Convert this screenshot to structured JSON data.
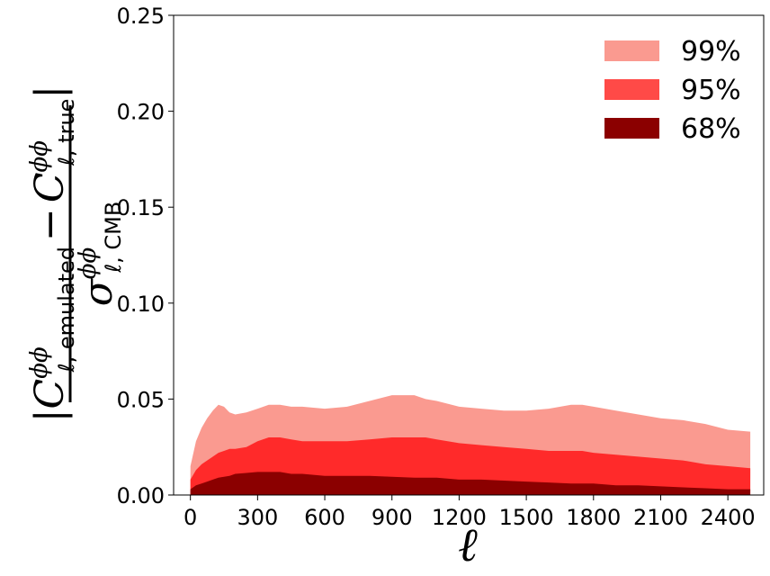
{
  "chart_data": {
    "type": "area",
    "xlabel": "ℓ",
    "ylabel": {
      "numerator_left_C": "C",
      "numerator_left_sup": "ϕϕ",
      "numerator_left_sub": "ℓ, emulated",
      "minus": "−",
      "numerator_right_C": "C",
      "numerator_right_sup": "ϕϕ",
      "numerator_right_sub": "ℓ, true",
      "denominator_sigma": "σ",
      "denominator_sup": "ϕϕ",
      "denominator_sub": "ℓ, CMB"
    },
    "xlim": [
      -75,
      2560
    ],
    "ylim": [
      0,
      0.25
    ],
    "x_ticks": [
      0,
      300,
      600,
      900,
      1200,
      1500,
      1800,
      2100,
      2400
    ],
    "y_ticks": [
      "0.00",
      "0.05",
      "0.10",
      "0.15",
      "0.20",
      "0.25"
    ],
    "grid": false,
    "legend_position": "top-right",
    "x": [
      0,
      25,
      50,
      75,
      100,
      125,
      150,
      175,
      200,
      250,
      300,
      350,
      400,
      450,
      500,
      600,
      700,
      800,
      900,
      1000,
      1050,
      1100,
      1200,
      1300,
      1400,
      1500,
      1600,
      1700,
      1750,
      1800,
      1900,
      2000,
      2100,
      2200,
      2300,
      2400,
      2500
    ],
    "series": [
      {
        "name": "99%",
        "color": "#fa9a90",
        "values": [
          0.015,
          0.028,
          0.035,
          0.04,
          0.044,
          0.047,
          0.046,
          0.043,
          0.042,
          0.043,
          0.045,
          0.047,
          0.047,
          0.046,
          0.046,
          0.045,
          0.046,
          0.049,
          0.052,
          0.052,
          0.05,
          0.049,
          0.046,
          0.045,
          0.044,
          0.044,
          0.045,
          0.047,
          0.047,
          0.046,
          0.044,
          0.042,
          0.04,
          0.039,
          0.037,
          0.034,
          0.033
        ]
      },
      {
        "name": "95%",
        "color": "#ff4a47",
        "values": [
          0.008,
          0.013,
          0.016,
          0.018,
          0.02,
          0.022,
          0.023,
          0.024,
          0.024,
          0.025,
          0.028,
          0.03,
          0.03,
          0.029,
          0.028,
          0.028,
          0.028,
          0.029,
          0.03,
          0.03,
          0.03,
          0.029,
          0.027,
          0.026,
          0.025,
          0.024,
          0.023,
          0.023,
          0.023,
          0.022,
          0.021,
          0.02,
          0.019,
          0.018,
          0.016,
          0.015,
          0.014
        ]
      },
      {
        "name": "68%",
        "color": "#8b0000",
        "values": [
          0.003,
          0.005,
          0.006,
          0.007,
          0.008,
          0.009,
          0.0095,
          0.01,
          0.011,
          0.0115,
          0.012,
          0.012,
          0.012,
          0.011,
          0.011,
          0.01,
          0.01,
          0.01,
          0.0095,
          0.009,
          0.009,
          0.009,
          0.008,
          0.008,
          0.0075,
          0.007,
          0.0065,
          0.006,
          0.006,
          0.006,
          0.005,
          0.005,
          0.0045,
          0.004,
          0.0035,
          0.003,
          0.003
        ]
      }
    ],
    "fill_color_inner": "#ff2a2a"
  }
}
